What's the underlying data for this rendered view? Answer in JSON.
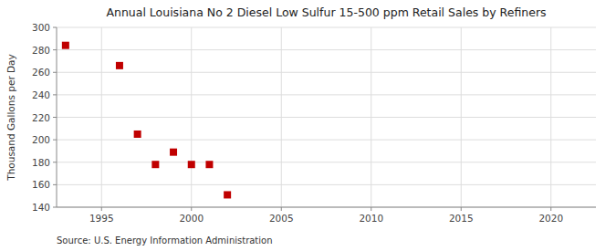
{
  "chart_data": {
    "type": "scatter",
    "title": "Annual Louisiana No 2 Diesel Low Sulfur 15-500 ppm Retail Sales by Refiners",
    "ylabel": "Thousand Gallons per Day",
    "annotation": "Source: U.S. Energy Information Administration",
    "x": [
      1993,
      1996,
      1997,
      1998,
      1999,
      2000,
      2001,
      2002
    ],
    "values": [
      284,
      266,
      205,
      178,
      189,
      178,
      178,
      151
    ],
    "color": "#c00000",
    "marker": "square",
    "xlim": [
      1992.5,
      2022.5
    ],
    "ylim": [
      140,
      300
    ],
    "xticks": [
      1995,
      2000,
      2005,
      2010,
      2015,
      2020
    ],
    "yticks": [
      140,
      160,
      180,
      200,
      220,
      240,
      260,
      280,
      300
    ],
    "grid": true
  }
}
